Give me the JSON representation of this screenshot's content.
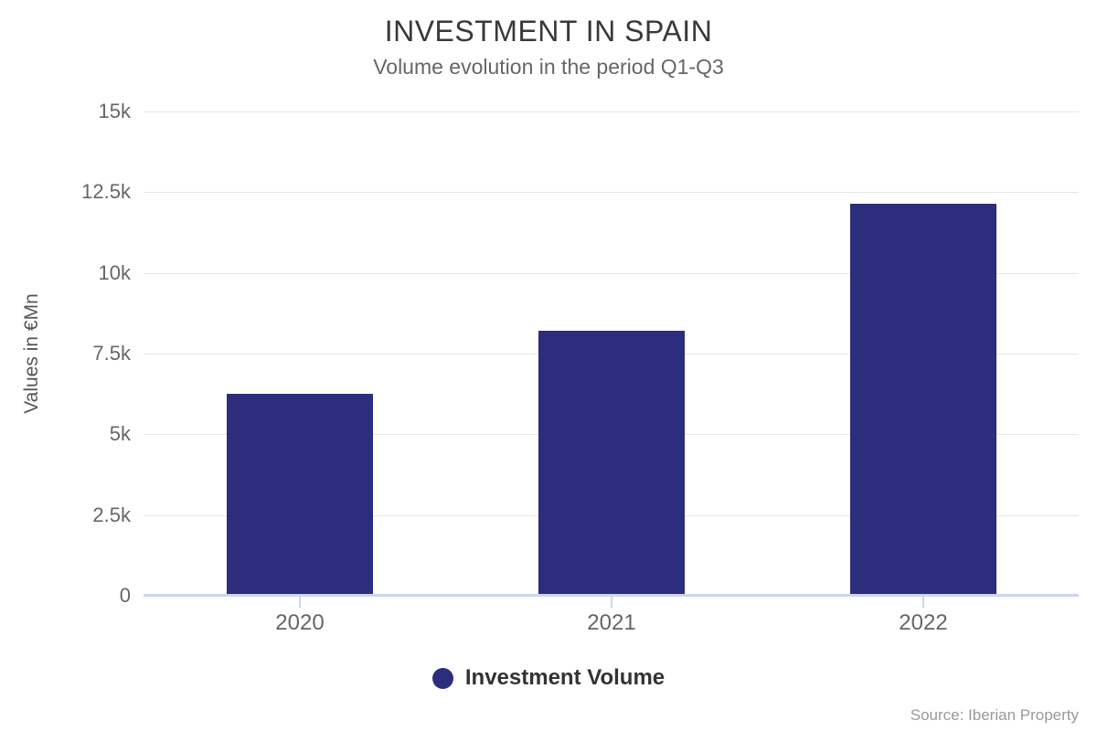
{
  "header": {
    "title": "INVESTMENT IN SPAIN",
    "subtitle": "Volume evolution in the period Q1-Q3"
  },
  "chart_data": {
    "type": "bar",
    "title": "INVESTMENT IN SPAIN",
    "subtitle": "Volume evolution in the period Q1-Q3",
    "categories": [
      "2020",
      "2021",
      "2022"
    ],
    "series": [
      {
        "name": "Investment Volume",
        "values": [
          6250,
          8200,
          12150
        ],
        "color": "#2c2d7c"
      }
    ],
    "xlabel": "",
    "ylabel": "Values in €Mn",
    "ylim": [
      0,
      15000
    ],
    "yticks": [
      {
        "value": 0,
        "label": "0"
      },
      {
        "value": 2500,
        "label": "2.5k"
      },
      {
        "value": 5000,
        "label": "5k"
      },
      {
        "value": 7500,
        "label": "7.5k"
      },
      {
        "value": 10000,
        "label": "10k"
      },
      {
        "value": 12500,
        "label": "12.5k"
      },
      {
        "value": 15000,
        "label": "15k"
      }
    ],
    "grid": true,
    "legend_position": "bottom"
  },
  "legend": {
    "label": "Investment Volume"
  },
  "footer": {
    "source": "Source: Iberian Property"
  },
  "colors": {
    "bar": "#2c2d7c",
    "axis_line": "#ccd6eb",
    "gridline": "#e6e6e6",
    "title_text": "#37393c",
    "subtitle_text": "#666666",
    "tick_text": "#666666",
    "source_text": "#999999"
  }
}
